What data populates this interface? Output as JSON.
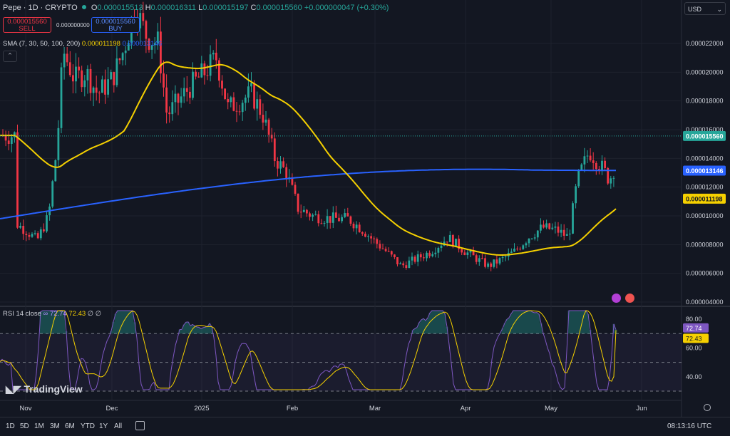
{
  "header": {
    "symbol": "Pepe · 1D · CRYPTO",
    "open_label": "O",
    "open_value": "0.000015513",
    "high_label": "H",
    "high_value": "0.000016311",
    "low_label": "L",
    "low_value": "0.000015197",
    "close_label": "C",
    "close_value": "0.000015560",
    "change_value": "+0.000000047 (+0.30%)"
  },
  "trade": {
    "sell_price": "0.000015560",
    "sell_label": "SELL",
    "spread": "0.000000000",
    "buy_price": "0.000015560",
    "buy_label": "BUY"
  },
  "sma_legend": {
    "label": "SMA (7, 30, 50, 100, 200)",
    "value1": "0.000011198",
    "value2": "0.000013146"
  },
  "rsi_legend": {
    "label": "RSI 14 close",
    "value1": "72.74",
    "value2": "72.43",
    "extra": "∅ ∅"
  },
  "currency": "USD",
  "brand": "TradingView",
  "timeframes": [
    "1D",
    "5D",
    "1M",
    "3M",
    "6M",
    "YTD",
    "1Y",
    "All"
  ],
  "clock": "08:13:16 UTC",
  "colors": {
    "bg": "#131722",
    "up": "#26a69a",
    "down": "#f23645",
    "sma_yellow": "#f5d000",
    "sma_blue": "#2962ff",
    "rsi": "#7e57c2",
    "rsi_ma": "#f5d000"
  },
  "chart_data": [
    {
      "type": "candlestick",
      "title": "Pepe · 1D · CRYPTO",
      "x_tick_labels": [
        "Nov",
        "Dec",
        "2025",
        "Feb",
        "Mar",
        "Apr",
        "May",
        "Jun"
      ],
      "y_tick_labels": [
        "0.000022000",
        "0.000020000",
        "0.000018000",
        "0.000016000",
        "0.000014000",
        "0.000012000",
        "0.000010000",
        "0.000008000",
        "0.000006000",
        "0.000004000"
      ],
      "ylim": [
        4e-06,
        2.35e-05
      ],
      "last_price": 1.556e-05,
      "last_price_label": "0.000015560",
      "series": [
        {
          "name": "SMA 200",
          "label": "0.000013146",
          "last": 1.3146e-05
        },
        {
          "name": "SMA 50",
          "label": "0.000011198",
          "last": 1.1198e-05
        }
      ],
      "approx_close_path": [
        [
          "Oct-24",
          9.5e-06
        ],
        [
          "Nov-01",
          9e-06
        ],
        [
          "Nov-05",
          8.3e-06
        ],
        [
          "Nov-09",
          1e-05
        ],
        [
          "Nov-12",
          1.5e-05
        ],
        [
          "Nov-14",
          2.15e-05
        ],
        [
          "Nov-18",
          1.95e-05
        ],
        [
          "Nov-22",
          2e-05
        ],
        [
          "Nov-26",
          1.85e-05
        ],
        [
          "Dec-01",
          1.95e-05
        ],
        [
          "Dec-05",
          2.15e-05
        ],
        [
          "Dec-09",
          2.45e-05
        ],
        [
          "Dec-13",
          2.25e-05
        ],
        [
          "Dec-17",
          2.2e-05
        ],
        [
          "Dec-20",
          1.7e-05
        ],
        [
          "Dec-24",
          1.8e-05
        ],
        [
          "Dec-28",
          1.9e-05
        ],
        [
          "Jan-02",
          2e-05
        ],
        [
          "Jan-06",
          2.1e-05
        ],
        [
          "Jan-10",
          1.75e-05
        ],
        [
          "Jan-14",
          1.8e-05
        ],
        [
          "Jan-18",
          1.85e-05
        ],
        [
          "Jan-22",
          1.7e-05
        ],
        [
          "Jan-26",
          1.4e-05
        ],
        [
          "Jan-30",
          1.3e-05
        ],
        [
          "Feb-03",
          1.05e-05
        ],
        [
          "Feb-08",
          1e-05
        ],
        [
          "Feb-14",
          9.8e-06
        ],
        [
          "Feb-20",
          9.8e-06
        ],
        [
          "Feb-25",
          9e-06
        ],
        [
          "Mar-01",
          8.2e-06
        ],
        [
          "Mar-05",
          7.5e-06
        ],
        [
          "Mar-10",
          6.5e-06
        ],
        [
          "Mar-15",
          7e-06
        ],
        [
          "Mar-20",
          7.5e-06
        ],
        [
          "Mar-26",
          8.5e-06
        ],
        [
          "Apr-01",
          7.5e-06
        ],
        [
          "Apr-05",
          7e-06
        ],
        [
          "Apr-09",
          6.5e-06
        ],
        [
          "Apr-14",
          7e-06
        ],
        [
          "Apr-18",
          7.5e-06
        ],
        [
          "Apr-23",
          8.5e-06
        ],
        [
          "Apr-28",
          9.2e-06
        ],
        [
          "May-03",
          9e-06
        ],
        [
          "May-07",
          8.5e-06
        ],
        [
          "May-10",
          1.25e-05
        ],
        [
          "May-14",
          1.45e-05
        ],
        [
          "May-18",
          1.35e-05
        ],
        [
          "May-21",
          1.25e-05
        ],
        [
          "May-24",
          1.4e-05
        ],
        [
          "May-27",
          1.56e-05
        ]
      ]
    },
    {
      "type": "line",
      "title": "RSI 14 close",
      "y_tick_labels": [
        "80.00",
        "60.00",
        "40.00"
      ],
      "ylim": [
        30,
        88
      ],
      "reference_lines": [
        70,
        50,
        30
      ],
      "series": [
        {
          "name": "RSI",
          "label": "72.74",
          "last": 72.74
        },
        {
          "name": "RSI MA",
          "label": "72.43",
          "last": 72.43
        }
      ]
    }
  ]
}
